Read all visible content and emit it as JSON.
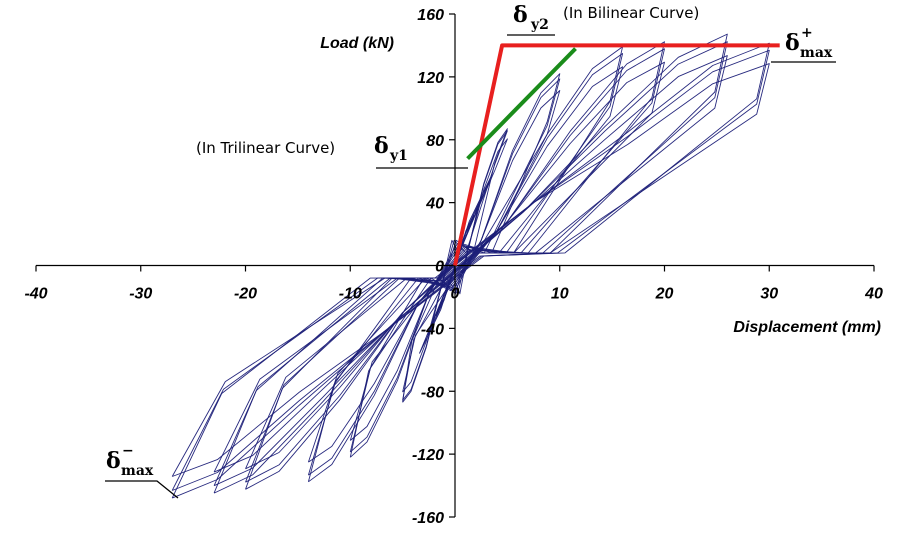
{
  "chart_data": {
    "type": "line",
    "title": "",
    "xlabel": "Displacement (mm)",
    "ylabel": "Load (kN)",
    "xlim": [
      -40,
      40
    ],
    "ylim": [
      -160,
      160
    ],
    "x_ticks": [
      "-40",
      "-30",
      "-20",
      "-10",
      "0",
      "10",
      "20",
      "30",
      "40"
    ],
    "y_ticks": [
      "160",
      "120",
      "80",
      "40",
      "0",
      "-40",
      "-80",
      "-120",
      "-160"
    ],
    "grid": false,
    "series": [
      {
        "name": "Bilinear Curve",
        "color": "#e8201f",
        "points": [
          [
            0,
            0
          ],
          [
            4.5,
            140
          ],
          [
            31,
            140
          ]
        ]
      },
      {
        "name": "Trilinear Curve",
        "color": "#1a8c1a",
        "points": [
          [
            1.2,
            68
          ],
          [
            11.5,
            138
          ]
        ]
      },
      {
        "name": "Hysteresis Loops",
        "color": "#1c1f78",
        "peaks_positive": [
          5,
          10,
          16,
          20,
          26,
          30
        ],
        "peaks_negative": [
          -5,
          -10,
          -14,
          -20,
          -23,
          -27
        ]
      }
    ],
    "annotations": {
      "dy2_symbol": "δ",
      "dy2_sub": "y2",
      "dy2_text": "(In Bilinear Curve)",
      "dy1_symbol": "δ",
      "dy1_sub": "y1",
      "dy1_text": "(In Trilinear Curve)",
      "dmax_pos_symbol": "δ",
      "dmax_pos_sub": "max",
      "dmax_pos_sup": "+",
      "dmax_neg_symbol": "δ",
      "dmax_neg_sub": "max",
      "dmax_neg_sup": "−"
    }
  }
}
